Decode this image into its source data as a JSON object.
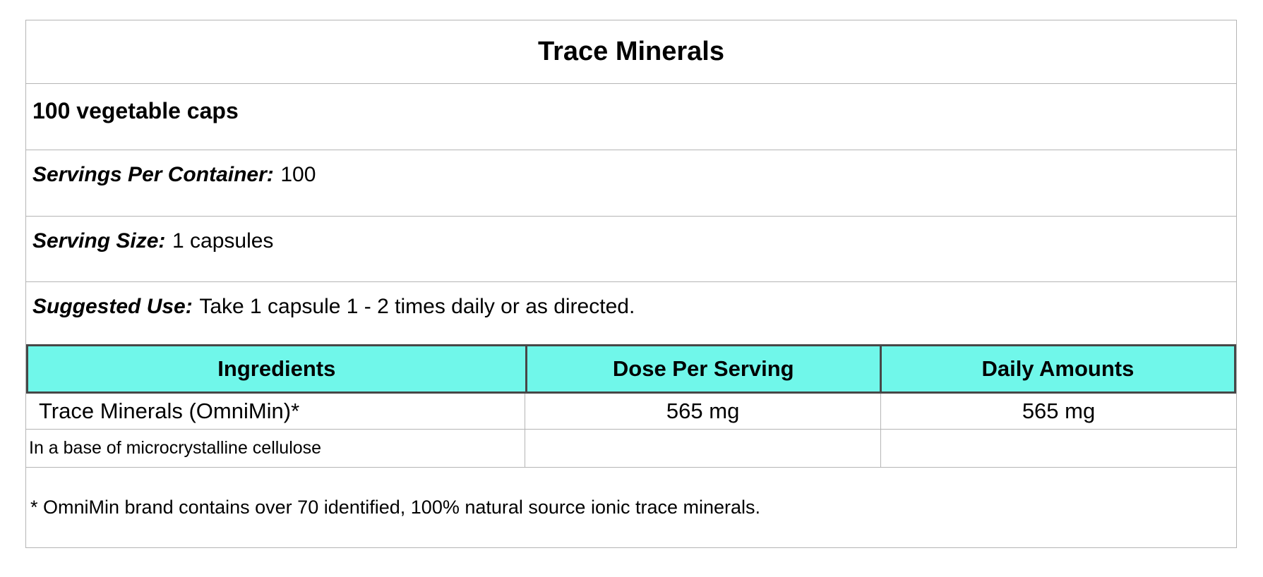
{
  "colors": {
    "header_bg": "#70f7ea",
    "header_border": "#474747",
    "grid_line": "#b5b5b5",
    "text": "#000000"
  },
  "label": {
    "title": "Trace Minerals",
    "quantity": "100 vegetable caps",
    "info_rows": [
      {
        "label": "Servings Per Container:",
        "value": "100"
      },
      {
        "label": "Serving Size:",
        "value": "1 capsules"
      },
      {
        "label": "Suggested Use:",
        "value": "Take 1 capsule 1 - 2 times daily or as directed."
      }
    ],
    "table": {
      "headers": [
        "Ingredients",
        "Dose Per Serving",
        "Daily Amounts"
      ],
      "rows": [
        {
          "ingredient": "Trace Minerals (OmniMin)*",
          "dose": "565 mg",
          "daily": "565 mg"
        },
        {
          "ingredient": "In a base of microcrystalline cellulose",
          "dose": "",
          "daily": ""
        }
      ]
    },
    "footnote": "* OmniMin brand contains over 70 identified, 100% natural source ionic trace minerals."
  }
}
